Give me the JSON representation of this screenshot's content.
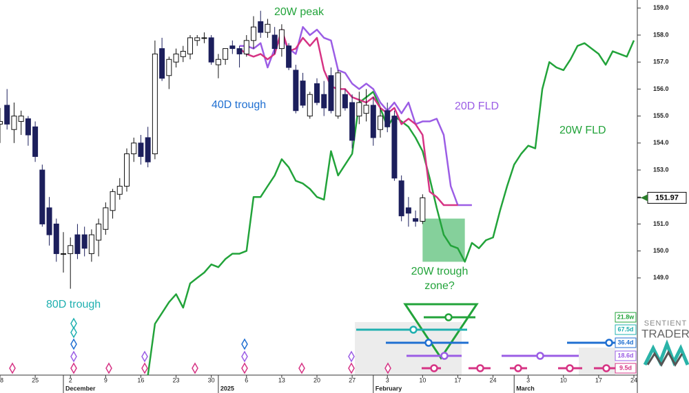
{
  "chart_data": {
    "type": "candlestick",
    "categories": [
      "18",
      null,
      null,
      null,
      null,
      "25",
      null,
      null,
      null,
      null,
      "2",
      null,
      null,
      null,
      null,
      "9",
      null,
      null,
      null,
      null,
      "16",
      null,
      null,
      null,
      null,
      "23",
      null,
      null,
      null,
      null,
      "30",
      null,
      null,
      null,
      null,
      "6",
      null,
      null,
      null,
      null,
      "13",
      null,
      null,
      null,
      null,
      "20",
      null,
      null,
      null,
      null,
      "27",
      null,
      null,
      null,
      null,
      "3",
      null,
      null,
      null,
      null,
      "10",
      null,
      null,
      null,
      null,
      "17",
      null,
      null,
      null,
      null,
      "24",
      null,
      null,
      null,
      null,
      "3",
      null,
      null,
      null,
      null,
      "10",
      null,
      null,
      null,
      null,
      "17",
      null,
      null,
      null,
      null,
      "24"
    ],
    "months": [
      null,
      null,
      null,
      null,
      null,
      null,
      null,
      null,
      null,
      "December",
      null,
      null,
      null,
      null,
      null,
      null,
      null,
      null,
      null,
      null,
      null,
      null,
      null,
      null,
      null,
      null,
      null,
      null,
      null,
      null,
      null,
      "2025",
      null,
      null,
      null,
      null,
      null,
      null,
      null,
      null,
      null,
      null,
      null,
      null,
      null,
      null,
      null,
      null,
      null,
      null,
      null,
      null,
      null,
      "February",
      null,
      null,
      null,
      null,
      null,
      null,
      null,
      null,
      null,
      null,
      null,
      null,
      null,
      null,
      null,
      null,
      null,
      null,
      null,
      "March",
      null,
      null,
      null,
      null,
      null,
      null,
      null,
      null,
      null,
      null,
      null,
      null,
      null,
      null,
      null,
      null,
      null
    ],
    "open": [
      154.7,
      155.4,
      154.5,
      154.8,
      154.9,
      154.6,
      153.0,
      151.6,
      151.0,
      149.9,
      149.9,
      150.6,
      150.6,
      149.9,
      150.4,
      150.8,
      151.5,
      152.1,
      152.4,
      153.6,
      154.0,
      154.2,
      153.6,
      157.5,
      156.5,
      157.0,
      157.2,
      157.3,
      157.8,
      157.9,
      157.9,
      156.9,
      157.1,
      157.6,
      157.5,
      157.3,
      157.8,
      158.5,
      158.1,
      158.0,
      157.5,
      157.6,
      156.7,
      156.3,
      155.0,
      156.2,
      155.8,
      156.5,
      155.0,
      155.8,
      155.5,
      155.0,
      155.1,
      155.4,
      154.5,
      155.2,
      155.0,
      152.6,
      151.6,
      151.2,
      151.1,
      null,
      null,
      null,
      null,
      null,
      null,
      null,
      null,
      null,
      null,
      null,
      null,
      null,
      null,
      null,
      null,
      null,
      null,
      null,
      null,
      null,
      null,
      null,
      null,
      null,
      null,
      null,
      null,
      null,
      null
    ],
    "high": [
      155.3,
      156.0,
      155.5,
      155.2,
      155.0,
      154.8,
      153.2,
      152.0,
      151.2,
      150.7,
      150.5,
      151.0,
      150.9,
      150.8,
      151.2,
      151.8,
      152.3,
      152.7,
      153.8,
      154.2,
      154.3,
      154.6,
      157.8,
      157.9,
      157.2,
      157.5,
      157.6,
      158.0,
      158.0,
      158.1,
      158.0,
      157.3,
      157.5,
      157.8,
      157.6,
      158.0,
      158.7,
      158.9,
      158.6,
      158.3,
      158.4,
      157.7,
      156.9,
      156.6,
      155.9,
      156.4,
      156.3,
      156.8,
      156.7,
      156.0,
      155.8,
      155.9,
      156.0,
      155.7,
      155.3,
      155.5,
      155.2,
      152.8,
      152.0,
      151.5,
      152.1,
      null,
      null,
      null,
      null,
      null,
      null,
      null,
      null,
      null,
      null,
      null,
      null,
      null,
      null,
      null,
      null,
      null,
      null,
      null,
      null,
      null,
      null,
      null,
      null,
      null,
      null,
      null,
      null,
      null,
      null
    ],
    "low": [
      154.0,
      154.5,
      154.0,
      154.3,
      153.9,
      153.3,
      150.9,
      150.2,
      149.6,
      149.2,
      148.6,
      149.7,
      149.8,
      149.6,
      149.8,
      150.6,
      151.2,
      151.9,
      152.2,
      153.3,
      153.2,
      153.1,
      153.4,
      156.3,
      156.0,
      156.8,
      157.0,
      157.1,
      157.6,
      157.7,
      156.9,
      156.4,
      156.9,
      157.3,
      156.8,
      157.2,
      157.5,
      157.9,
      157.9,
      157.3,
      157.2,
      156.7,
      155.1,
      155.3,
      154.9,
      155.4,
      155.0,
      155.1,
      154.9,
      155.2,
      153.8,
      154.7,
      154.8,
      153.9,
      154.2,
      154.4,
      152.6,
      151.1,
      150.9,
      150.9,
      151.0,
      null,
      null,
      null,
      null,
      null,
      null,
      null,
      null,
      null,
      null,
      null,
      null,
      null,
      null,
      null,
      null,
      null,
      null,
      null,
      null,
      null,
      null,
      null,
      null,
      null,
      null,
      null,
      null,
      null,
      null
    ],
    "close": [
      154.8,
      154.7,
      155.0,
      155.0,
      154.3,
      153.5,
      151.0,
      150.6,
      149.9,
      149.9,
      150.2,
      149.9,
      150.1,
      150.6,
      151.0,
      151.6,
      152.2,
      152.4,
      153.6,
      154.0,
      153.5,
      153.3,
      157.3,
      156.4,
      157.1,
      157.3,
      157.4,
      157.9,
      157.9,
      157.9,
      157.0,
      157.1,
      157.5,
      157.5,
      157.3,
      157.8,
      158.3,
      158.1,
      158.4,
      157.5,
      158.2,
      156.8,
      155.2,
      155.4,
      155.8,
      155.5,
      155.3,
      155.2,
      156.6,
      155.3,
      154.1,
      155.5,
      155.4,
      154.2,
      155.0,
      154.6,
      152.7,
      151.3,
      151.4,
      151.1,
      151.97,
      null,
      null,
      null,
      null,
      null,
      null,
      null,
      null,
      null,
      null,
      null,
      null,
      null,
      null,
      null,
      null,
      null,
      null,
      null,
      null,
      null,
      null,
      null,
      null,
      null,
      null,
      null,
      null,
      null,
      null
    ],
    "candle_colors": {
      "up": "#ffffff",
      "down": "#1c1f5c",
      "outline": "#111111"
    },
    "series": [
      {
        "name": "20D FLD",
        "color": "#9b5de5",
        "values": [
          null,
          null,
          null,
          null,
          null,
          null,
          null,
          null,
          null,
          null,
          null,
          null,
          null,
          null,
          null,
          null,
          null,
          null,
          null,
          null,
          null,
          null,
          null,
          null,
          null,
          null,
          null,
          null,
          null,
          null,
          null,
          null,
          null,
          null,
          157.6,
          157.6,
          157.5,
          157.7,
          156.8,
          157.5,
          157.9,
          157.5,
          157.3,
          158.3,
          158.0,
          158.2,
          157.9,
          157.8,
          156.7,
          156.6,
          156.2,
          156.0,
          156.2,
          156.0,
          155.5,
          155.2,
          155.5,
          155.1,
          155.5,
          154.7,
          154.8,
          154.8,
          154.9,
          154.3,
          152.4,
          151.7,
          151.7,
          151.7,
          null,
          null,
          null,
          null,
          null,
          null,
          null,
          null,
          null,
          null,
          null,
          null,
          null,
          null,
          null,
          null,
          null,
          null,
          null,
          null,
          null,
          null,
          null
        ]
      },
      {
        "color": "#d63384",
        "values": [
          null,
          null,
          null,
          null,
          null,
          null,
          null,
          null,
          null,
          null,
          null,
          null,
          null,
          null,
          null,
          null,
          null,
          null,
          null,
          null,
          null,
          null,
          null,
          null,
          null,
          null,
          null,
          null,
          null,
          null,
          null,
          null,
          null,
          null,
          157.5,
          157.3,
          157.2,
          157.3,
          157.1,
          157.3,
          158.2,
          157.4,
          157.5,
          157.9,
          157.6,
          157.9,
          156.7,
          156.1,
          156.0,
          156.0,
          155.7,
          155.6,
          155.5,
          155.7,
          155.3,
          155.1,
          155.3,
          154.7,
          154.9,
          154.7,
          154.3,
          152.2,
          152.0,
          151.7,
          151.7,
          151.7,
          null,
          null,
          null,
          null,
          null,
          null,
          null,
          null,
          null,
          null,
          null,
          null,
          null,
          null,
          null,
          null,
          null,
          null,
          null,
          null,
          null,
          null,
          null,
          null,
          null
        ]
      },
      {
        "name": "20W FLD",
        "color": "#22a33a",
        "values": [
          null,
          null,
          null,
          null,
          null,
          null,
          null,
          null,
          null,
          null,
          null,
          null,
          null,
          null,
          null,
          null,
          null,
          null,
          null,
          null,
          null,
          145.4,
          147.3,
          147.7,
          148.1,
          148.4,
          147.9,
          148.8,
          149.0,
          149.2,
          149.5,
          149.4,
          149.7,
          149.9,
          149.9,
          150.0,
          152.0,
          152.0,
          152.4,
          152.8,
          153.4,
          153.1,
          152.6,
          152.5,
          152.3,
          152.0,
          151.9,
          153.7,
          152.8,
          153.2,
          153.6,
          155.5,
          155.7,
          155.9,
          155.3,
          154.6,
          155.0,
          154.8,
          154.6,
          154.2,
          153.7,
          152.7,
          151.6,
          150.6,
          150.2,
          150.1,
          149.6,
          150.3,
          150.1,
          150.4,
          150.5,
          151.5,
          152.4,
          153.2,
          153.6,
          153.9,
          153.8,
          156.0,
          157.0,
          156.8,
          156.7,
          157.1,
          157.6,
          157.7,
          157.5,
          157.3,
          156.9,
          157.4,
          157.3,
          157.2,
          157.8
        ]
      }
    ],
    "annotations": [
      {
        "text": "20W peak",
        "color": "#22a33a"
      },
      {
        "text": "40D trough",
        "color": "#1f6fd1"
      },
      {
        "text": "80D trough",
        "color": "#1fb0b0"
      },
      {
        "text": "20W trough",
        "color": "#22a33a"
      },
      {
        "text": "zone?",
        "color": "#22a33a"
      }
    ],
    "ylim": [
      145.4,
      159.3
    ],
    "yticks": [
      {
        "value": 149,
        "label": "149.0"
      },
      {
        "value": 150,
        "label": "150.0"
      },
      {
        "value": 151,
        "label": "151.0"
      },
      {
        "value": 152,
        "label": "152.0"
      },
      {
        "value": 153,
        "label": "153.0"
      },
      {
        "value": 154,
        "label": "154.0"
      },
      {
        "value": 155,
        "label": "155.0"
      },
      {
        "value": 156,
        "label": "156.0"
      },
      {
        "value": 157,
        "label": "157.0"
      },
      {
        "value": 158,
        "label": "158.0"
      },
      {
        "value": 159,
        "label": "159.0"
      }
    ],
    "last_price": 151.97,
    "trough_zone": {
      "low": 149.6,
      "high": 151.2,
      "categories": [
        60,
        66
      ],
      "color": "#5cc07a"
    },
    "cycles": [
      {
        "label": "21.8w",
        "color": "#22a33a"
      },
      {
        "label": "67.5d",
        "color": "#1fb0b0"
      },
      {
        "label": "36.4d",
        "color": "#1f6fd1"
      },
      {
        "label": "18.6d",
        "color": "#9b5de5"
      },
      {
        "label": "9.5d",
        "color": "#d63384"
      }
    ],
    "logo": [
      "SENTIENT",
      "TRADER"
    ]
  }
}
